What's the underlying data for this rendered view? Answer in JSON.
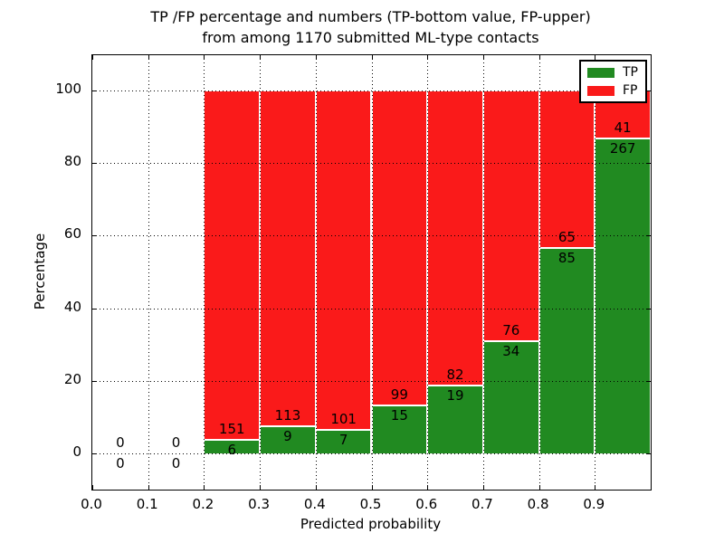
{
  "title": {
    "line1": "TP /FP percentage and numbers (TP-bottom value, FP-upper)",
    "line2": "from among 1170 submitted ML-type contacts"
  },
  "axes": {
    "xlabel": "Predicted probability",
    "ylabel": "Percentage"
  },
  "legend": {
    "items": [
      {
        "label": "TP",
        "color": "#218a21"
      },
      {
        "label": "FP",
        "color": "#fa1a1a"
      }
    ]
  },
  "chart_data": {
    "type": "bar",
    "stacked": true,
    "title": "TP /FP percentage and numbers (TP-bottom value, FP-upper)\nfrom among 1170 submitted ML-type contacts",
    "xlabel": "Predicted probability",
    "ylabel": "Percentage",
    "xlim": [
      0.0,
      1.0
    ],
    "ylim": [
      -10,
      110
    ],
    "xticks": [
      "0.0",
      "0.1",
      "0.2",
      "0.3",
      "0.4",
      "0.5",
      "0.6",
      "0.7",
      "0.8",
      "0.9"
    ],
    "yticks": [
      0,
      20,
      40,
      60,
      80,
      100
    ],
    "grid": true,
    "grid_style": "dotted",
    "legend_position": "upper right",
    "bin_edges": [
      0.0,
      0.1,
      0.2,
      0.3,
      0.4,
      0.5,
      0.6,
      0.7,
      0.8,
      0.9,
      1.0
    ],
    "series": [
      {
        "name": "TP",
        "color": "#218a21",
        "counts": [
          0,
          0,
          6,
          9,
          7,
          15,
          19,
          34,
          85,
          267
        ]
      },
      {
        "name": "FP",
        "color": "#fa1a1a",
        "counts": [
          0,
          0,
          151,
          113,
          101,
          99,
          82,
          76,
          65,
          41
        ]
      }
    ],
    "tp_percent_of_bin": [
      0,
      0,
      3.8,
      7.4,
      6.5,
      13.2,
      18.8,
      30.9,
      56.7,
      86.7
    ],
    "total_contacts_in_title": 1170
  }
}
